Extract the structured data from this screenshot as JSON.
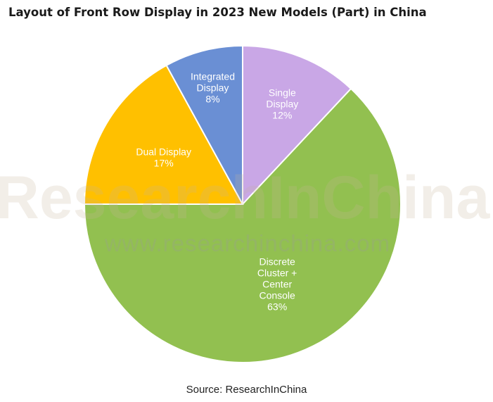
{
  "chart_data": {
    "type": "pie",
    "title": "Layout of Front Row Display in 2023 New Models (Part) in China",
    "slices": [
      {
        "label_lines": [
          "Single",
          "Display",
          "12%"
        ],
        "value": 12,
        "color": "#c9a7e6"
      },
      {
        "label_lines": [
          "Discrete",
          "Cluster +",
          "Center",
          "Console",
          "63%"
        ],
        "value": 63,
        "color": "#92c050"
      },
      {
        "label_lines": [
          "Dual Display",
          "17%"
        ],
        "value": 17,
        "color": "#ffc000"
      },
      {
        "label_lines": [
          "Integrated",
          "Display",
          "8%"
        ],
        "value": 8,
        "color": "#6a8fd4"
      }
    ],
    "watermark": {
      "brand": "ResearchInChina",
      "url": "www.researchinchina.com"
    }
  },
  "source_text": "Source: ResearchInChina"
}
